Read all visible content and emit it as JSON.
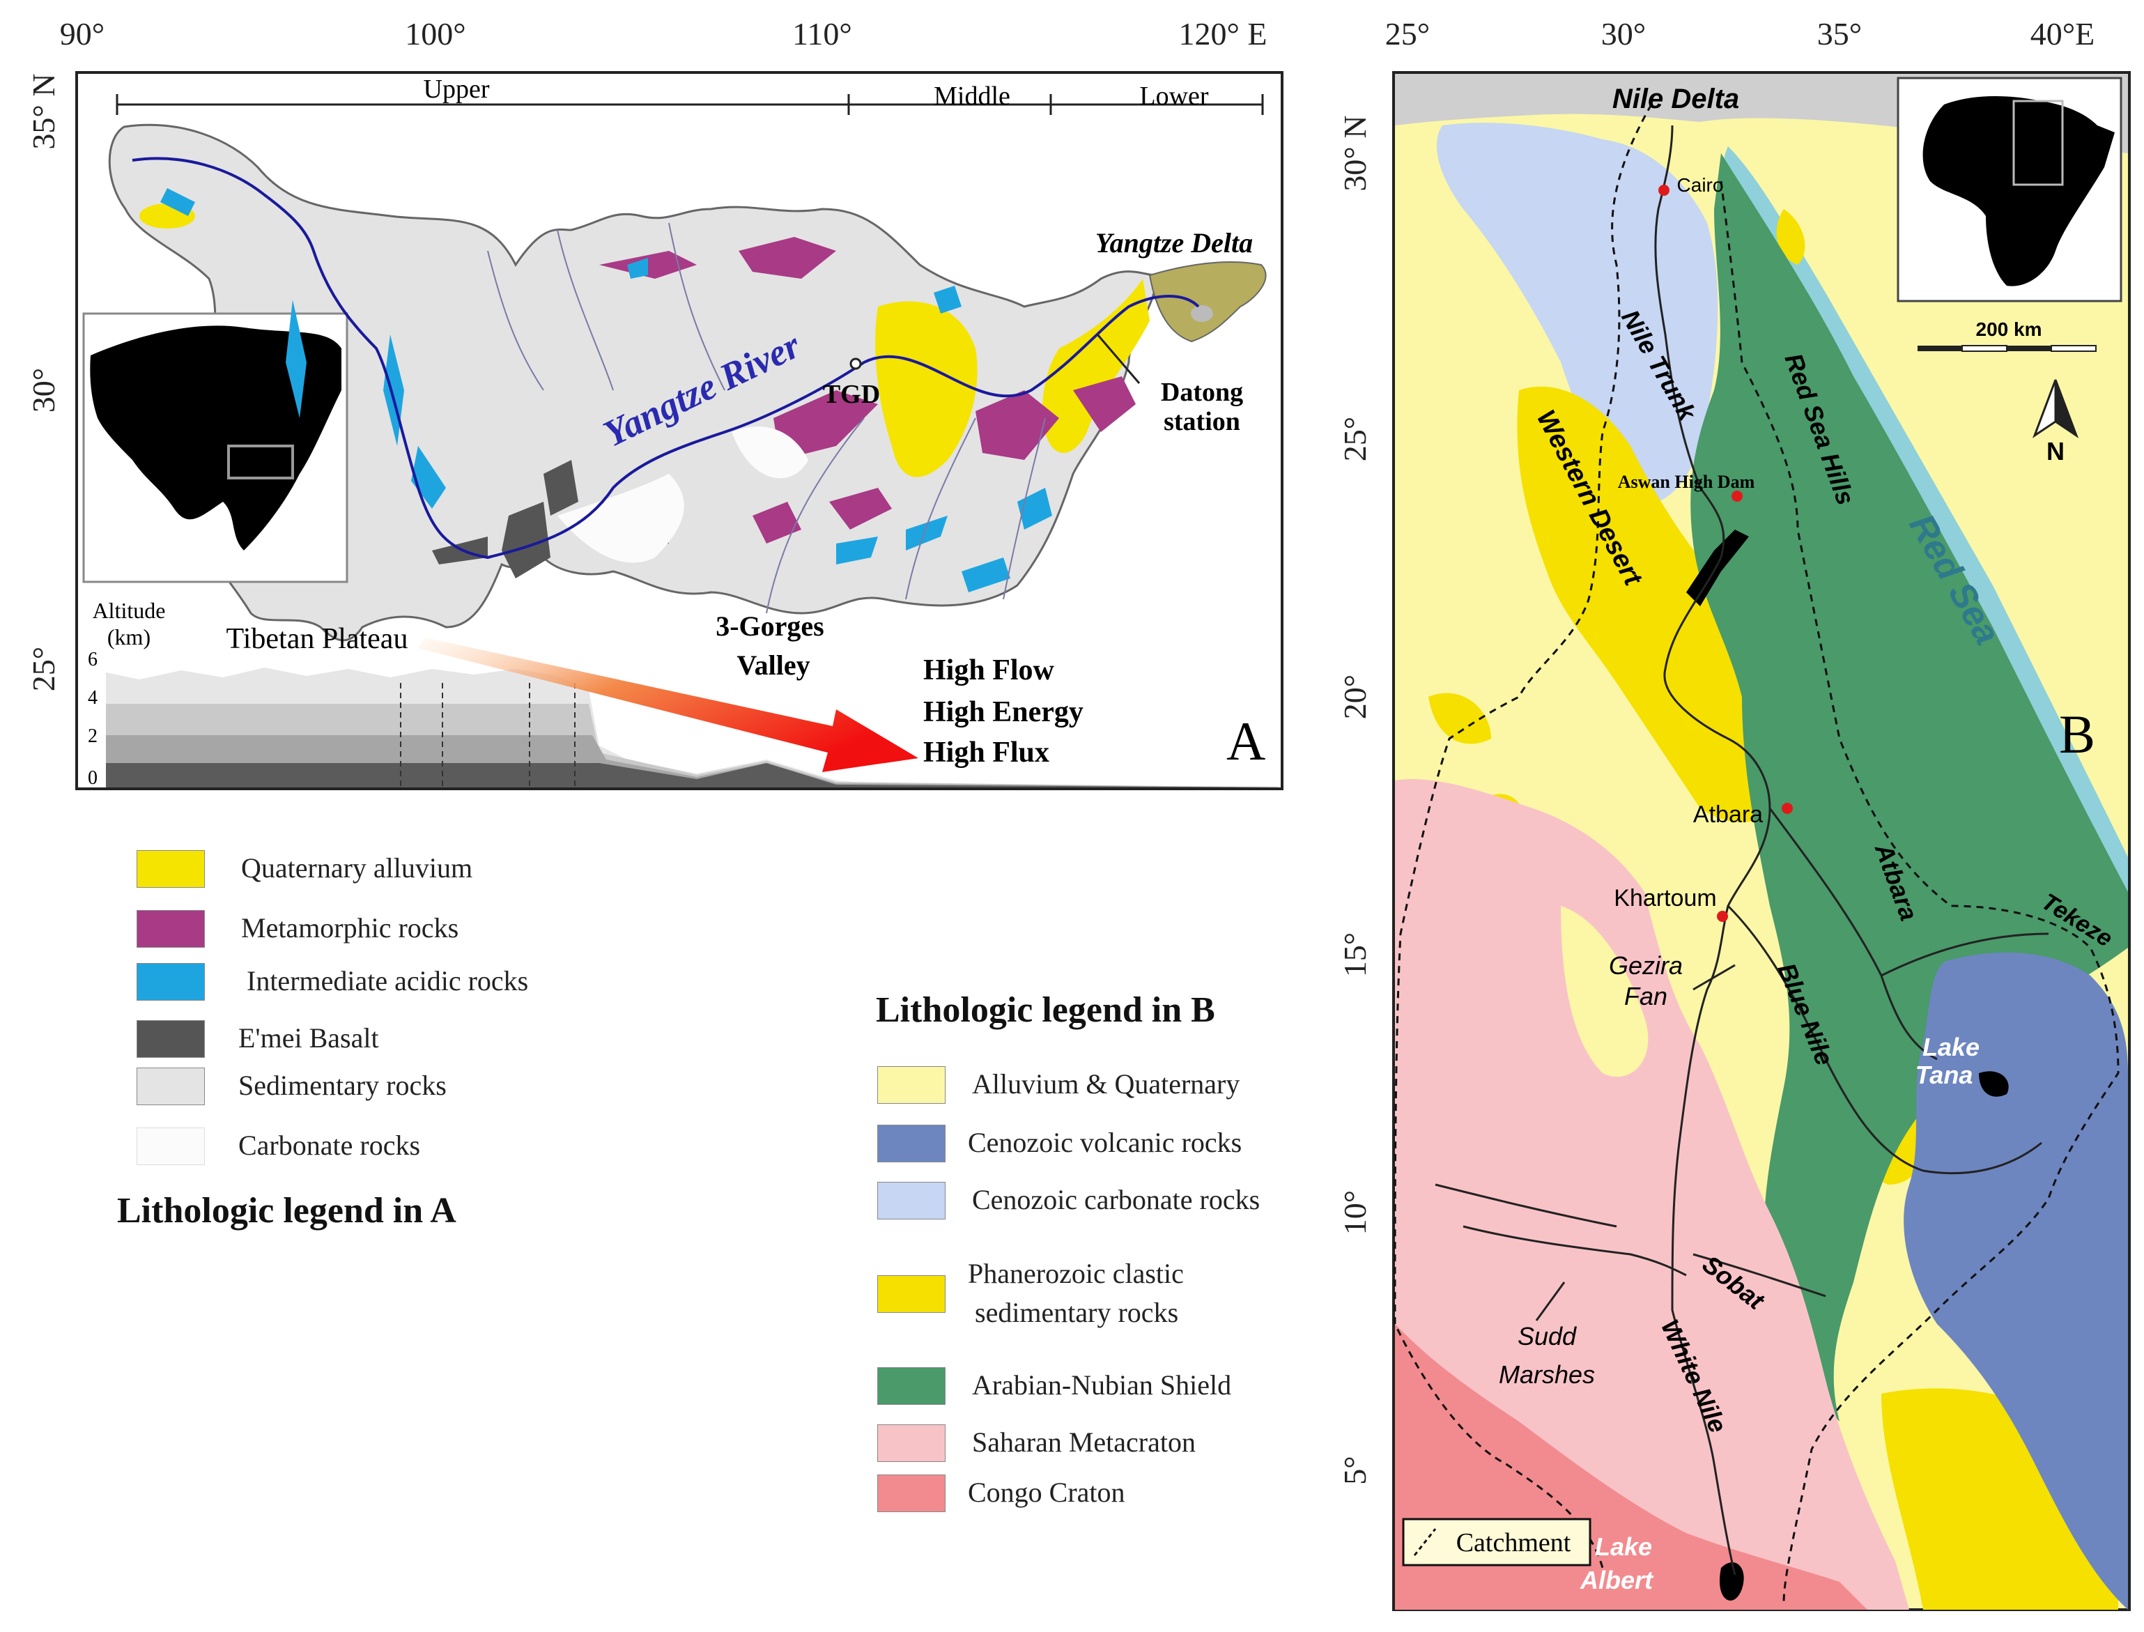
{
  "panel_a": {
    "letter": "A",
    "lon_ticks": [
      "90°",
      "100°",
      "110°",
      "120° E"
    ],
    "lat_ticks": [
      "35° N",
      "30°",
      "25°"
    ],
    "segments": [
      "Upper",
      "Middle",
      "Lower"
    ],
    "labels": {
      "river": "Yangtze River",
      "delta": "Yangtze Delta",
      "tgd": "TGD",
      "datong_1": "Datong",
      "datong_2": "station",
      "altitude_1": "Altitude",
      "altitude_2": "(km)",
      "plateau": "Tibetan Plateau",
      "gorges_1": "3-Gorges",
      "gorges_2": "Valley",
      "flow": "High Flow",
      "energy": "High Energy",
      "flux": "High Flux"
    },
    "altitude_ticks": [
      "6",
      "4",
      "2",
      "0"
    ]
  },
  "legend_a": {
    "title": "Lithologic legend in A",
    "items": [
      {
        "label": "Quaternary alluvium",
        "color": "#f5e400"
      },
      {
        "label": "Metamorphic rocks",
        "color": "#a83a86"
      },
      {
        "label": "Intermediate acidic rocks",
        "color": "#1ea5e0"
      },
      {
        "label": "E'mei Basalt",
        "color": "#555555"
      },
      {
        "label": "Sedimentary rocks",
        "color": "#e4e4e4"
      },
      {
        "label": "Carbonate rocks",
        "color": "#fbfbfb"
      }
    ]
  },
  "legend_b": {
    "title": "Lithologic legend in B",
    "items": [
      {
        "label": "Alluvium & Quaternary",
        "color": "#fbf7a6"
      },
      {
        "label": "Cenozoic volcanic rocks",
        "color": "#6d86c0"
      },
      {
        "label": "Cenozoic carbonate rocks",
        "color": "#c6d6f3"
      },
      {
        "label": "Phanerozoic clastic",
        "label2": "sedimentary rocks",
        "color": "#f5e000"
      },
      {
        "label": "Arabian-Nubian Shield",
        "color": "#4a9a6a"
      },
      {
        "label": "Saharan Metacraton",
        "color": "#f8c3c7"
      },
      {
        "label": "Congo Craton",
        "color": "#f28b8f"
      }
    ]
  },
  "panel_b": {
    "letter": "B",
    "lon_ticks": [
      "25°",
      "30°",
      "35°",
      "40°E"
    ],
    "lat_ticks": [
      "30° N",
      "25°",
      "20°",
      "15°",
      "10°",
      "5°"
    ],
    "scale_label": "200 km",
    "north": "N",
    "catchment": "Catchment",
    "labels": {
      "nile_delta": "Nile Delta",
      "cairo": "Cairo",
      "nile_trunk": "Nile Trunk",
      "red_sea_hills": "Red Sea Hills",
      "red_sea": "Red Sea",
      "western_desert": "Western Desert",
      "aswan": "Aswan High Dam",
      "atbara_city": "Atbara",
      "atbara_river": "Atbara",
      "khartoum": "Khartoum",
      "tekeze": "Tekeze",
      "gezira_1": "Gezira",
      "gezira_2": "Fan",
      "blue_nile": "Blue Nile",
      "lake_tana_1": "Lake",
      "lake_tana_2": "Tana",
      "sobat": "Sobat",
      "sudd_1": "Sudd",
      "sudd_2": "Marshes",
      "white_nile": "White Nile",
      "lake_albert_1": "Lake",
      "lake_albert_2": "Albert"
    }
  }
}
